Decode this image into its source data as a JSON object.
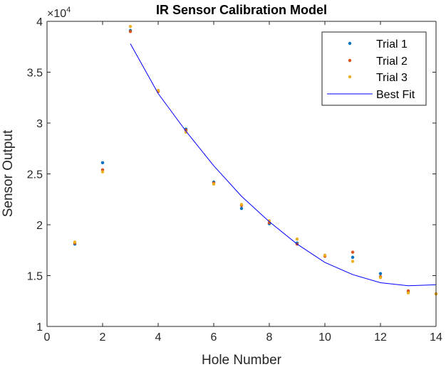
{
  "chart_data": {
    "type": "scatter",
    "title": "IR Sensor Calibration Model",
    "xlabel": "Hole Number",
    "ylabel": "Sensor Output",
    "xlim": [
      0,
      14
    ],
    "ylim": [
      10000,
      40000
    ],
    "xticks": [
      "0",
      "2",
      "4",
      "6",
      "8",
      "10",
      "12",
      "14"
    ],
    "yticks": [
      "1",
      "1.5",
      "2",
      "2.5",
      "3",
      "3.5",
      "4"
    ],
    "y_exponent_base": "×10",
    "y_exponent_power": "4",
    "legend_position": "top-right",
    "grid": false,
    "series": [
      {
        "name": "Trial 1",
        "kind": "points",
        "color": "#0072BD",
        "x": [
          1,
          2,
          3,
          4,
          5,
          6,
          7,
          8,
          9,
          10,
          11,
          12,
          13,
          14
        ],
        "y": [
          18100,
          26100,
          39100,
          33200,
          29400,
          24200,
          21600,
          20100,
          18200,
          17000,
          16800,
          15200,
          13400,
          13200
        ]
      },
      {
        "name": "Trial 2",
        "kind": "points",
        "color": "#D95319",
        "x": [
          1,
          2,
          3,
          4,
          5,
          6,
          7,
          8,
          9,
          10,
          11,
          12,
          13,
          14
        ],
        "y": [
          18200,
          25400,
          39000,
          33100,
          29300,
          24100,
          21900,
          20200,
          18100,
          16900,
          17300,
          14900,
          13500,
          13200
        ]
      },
      {
        "name": "Trial 3",
        "kind": "points",
        "color": "#EDB120",
        "x": [
          1,
          2,
          3,
          4,
          5,
          6,
          7,
          8,
          9,
          10,
          11,
          12,
          13,
          14
        ],
        "y": [
          18300,
          25200,
          39500,
          33200,
          29100,
          24000,
          22000,
          20400,
          18600,
          17000,
          16400,
          14800,
          13300,
          13200
        ]
      },
      {
        "name": "Best Fit",
        "kind": "line",
        "color": "#0000FF",
        "x": [
          3,
          4,
          5,
          6,
          7,
          8,
          9,
          10,
          11,
          12,
          13,
          14
        ],
        "y": [
          37800,
          32900,
          29200,
          25800,
          22800,
          20300,
          18100,
          16300,
          15100,
          14300,
          14000,
          14100
        ]
      }
    ]
  }
}
